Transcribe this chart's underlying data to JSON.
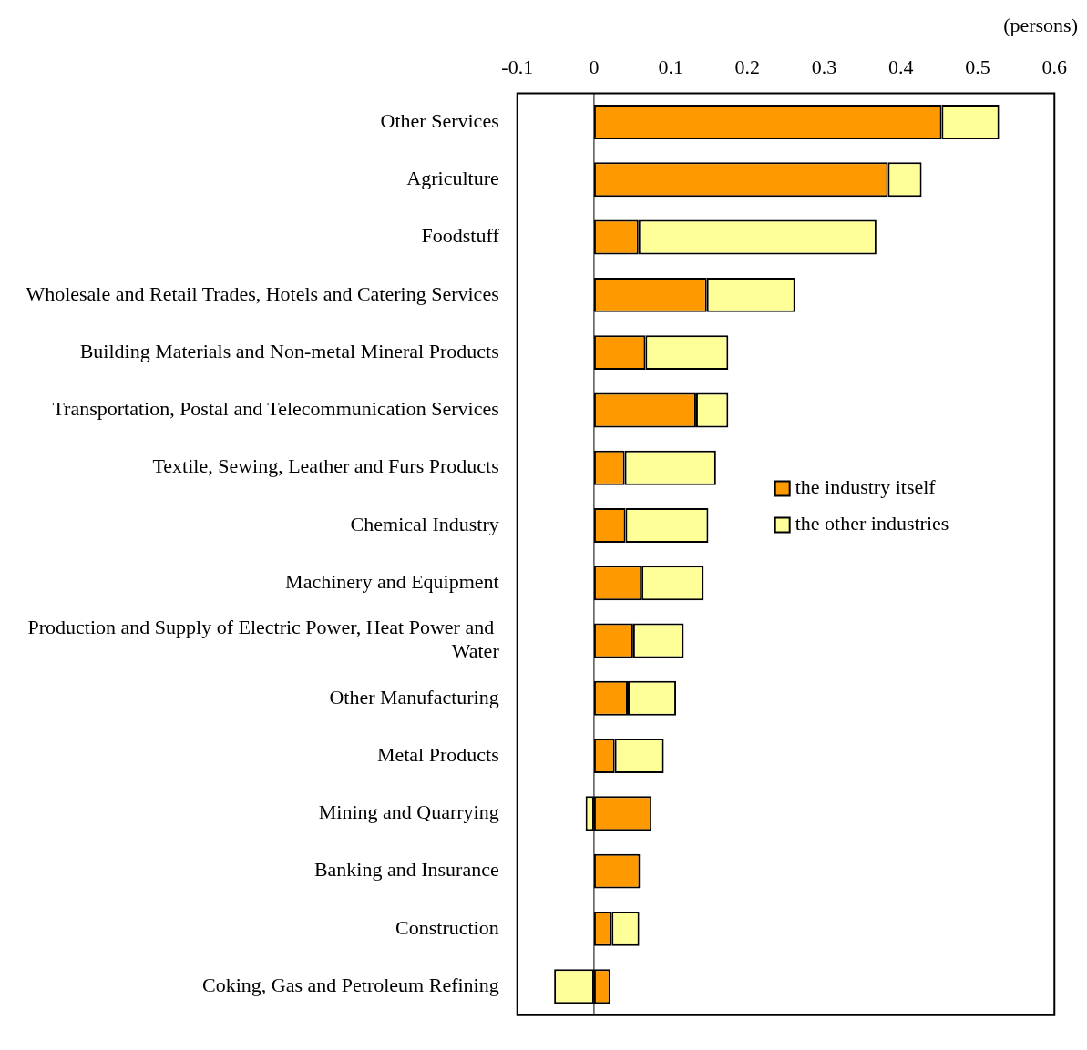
{
  "chart_data": {
    "type": "bar",
    "orientation": "horizontal",
    "stacked": true,
    "xlabel": "(persons)",
    "categories": [
      "Other Services",
      "Agriculture",
      "Foodstuff",
      "Wholesale and Retail Trades, Hotels and Catering Services",
      "Building Materials and Non-metal Mineral Products",
      "Transportation, Postal and Telecommunication Services",
      "Textile, Sewing, Leather and Furs Products",
      "Chemical Industry",
      "Machinery and Equipment",
      "Production and Supply of Electric Power, Heat Power and  Water",
      "Other Manufacturing",
      "Metal Products",
      "Mining and Quarrying",
      "Banking and Insurance",
      "Construction",
      "Coking, Gas and Petroleum Refining"
    ],
    "series": [
      {
        "name": "the industry itself",
        "color": "#ff9900",
        "values": [
          0.453,
          0.383,
          0.058,
          0.147,
          0.067,
          0.133,
          0.04,
          0.041,
          0.062,
          0.051,
          0.044,
          0.027,
          0.075,
          0.06,
          0.023,
          0.021
        ]
      },
      {
        "name": "the other industries",
        "color": "#ffff99",
        "values": [
          0.075,
          0.044,
          0.31,
          0.115,
          0.108,
          0.042,
          0.119,
          0.108,
          0.081,
          0.066,
          0.063,
          0.064,
          -0.011,
          0,
          0.036,
          -0.052
        ]
      }
    ],
    "xlim": [
      -0.1,
      0.6
    ],
    "xticks": [
      -0.1,
      0,
      0.1,
      0.2,
      0.3,
      0.4,
      0.5,
      0.6
    ],
    "ref_lines": [
      {
        "axis": "x",
        "value": 0
      }
    ],
    "grid": false,
    "legend": "right"
  }
}
